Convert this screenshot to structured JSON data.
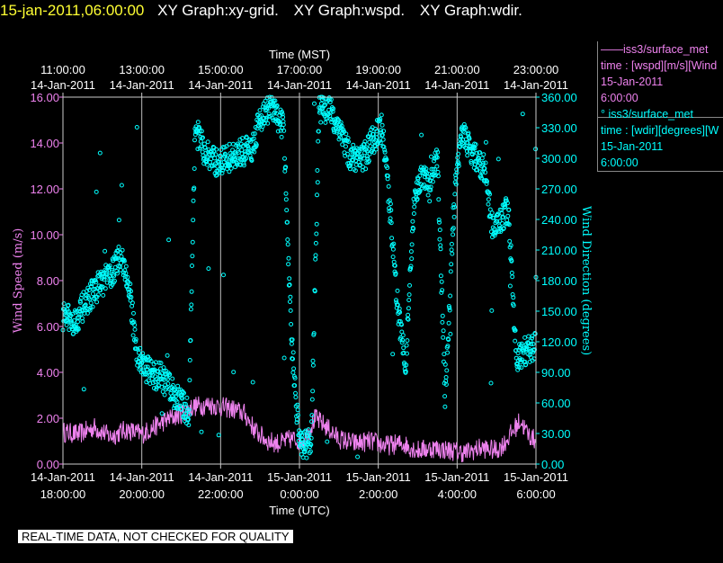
{
  "header": {
    "timestamp": "15-jan-2011,06:00:00",
    "titles": [
      "XY Graph:xy-grid.",
      "XY Graph:wspd.",
      "XY Graph:wdir."
    ]
  },
  "legend": [
    {
      "line1": "——iss3/surface_met",
      "line2": "time : [wspd][m/s][Wind",
      "line3": "15-Jan-2011",
      "line4": "6:00:00",
      "color": "#ee82ee"
    },
    {
      "line1": "° iss3/surface_met",
      "line2": "time : [wdir][degrees][W",
      "line3": "15-Jan-2011",
      "line4": "6:00:00",
      "color": "#00ffff"
    }
  ],
  "footer": "REAL-TIME DATA, NOT CHECKED FOR QUALITY",
  "chart_data": {
    "type": "line",
    "top_axis": {
      "label": "Time (MST)",
      "ticks": [
        {
          "time": "11:00:00",
          "date": "14-Jan-2011"
        },
        {
          "time": "13:00:00",
          "date": "14-Jan-2011"
        },
        {
          "time": "15:00:00",
          "date": "14-Jan-2011"
        },
        {
          "time": "17:00:00",
          "date": "14-Jan-2011"
        },
        {
          "time": "19:00:00",
          "date": "14-Jan-2011"
        },
        {
          "time": "21:00:00",
          "date": "14-Jan-2011"
        },
        {
          "time": "23:00:00",
          "date": "14-Jan-2011"
        }
      ]
    },
    "bottom_axis": {
      "label": "Time (UTC)",
      "ticks": [
        {
          "date": "14-Jan-2011",
          "time": "18:00:00"
        },
        {
          "date": "14-Jan-2011",
          "time": "20:00:00"
        },
        {
          "date": "14-Jan-2011",
          "time": "22:00:00"
        },
        {
          "date": "15-Jan-2011",
          "time": "0:00:00"
        },
        {
          "date": "15-Jan-2011",
          "time": "2:00:00"
        },
        {
          "date": "15-Jan-2011",
          "time": "4:00:00"
        },
        {
          "date": "15-Jan-2011",
          "time": "6:00:00"
        }
      ]
    },
    "xlim_hours_utc": [
      18,
      30
    ],
    "left_axis": {
      "label": "Wind Speed (m/s)",
      "color": "#ee82ee",
      "ylim": [
        0,
        16
      ],
      "ticks": [
        "0.00",
        "2.00",
        "4.00",
        "6.00",
        "8.00",
        "10.00",
        "12.00",
        "14.00",
        "16.00"
      ]
    },
    "right_axis": {
      "label": "Wind Direction (degrees)",
      "color": "#00ffff",
      "ylim": [
        0,
        360
      ],
      "ticks": [
        "0.00",
        "30.00",
        "60.00",
        "90.00",
        "120.00",
        "150.00",
        "180.00",
        "210.00",
        "240.00",
        "270.00",
        "300.00",
        "330.00",
        "360.00"
      ]
    },
    "grid": true,
    "series": [
      {
        "name": "iss3/surface_met time : [wspd][m/s]",
        "type": "line",
        "axis": "left",
        "color": "#ee82ee",
        "points": [
          [
            18.0,
            1.4
          ],
          [
            18.4,
            1.3
          ],
          [
            18.8,
            1.6
          ],
          [
            19.2,
            1.2
          ],
          [
            19.6,
            1.5
          ],
          [
            20.0,
            1.3
          ],
          [
            20.3,
            1.6
          ],
          [
            20.6,
            1.9
          ],
          [
            21.0,
            2.2
          ],
          [
            21.3,
            2.5
          ],
          [
            21.7,
            2.6
          ],
          [
            22.0,
            2.5
          ],
          [
            22.3,
            2.4
          ],
          [
            22.6,
            2.2
          ],
          [
            22.9,
            1.4
          ],
          [
            23.2,
            1.0
          ],
          [
            23.5,
            0.9
          ],
          [
            23.8,
            1.1
          ],
          [
            24.1,
            1.0
          ],
          [
            24.4,
            2.0
          ],
          [
            24.7,
            1.6
          ],
          [
            25.0,
            1.1
          ],
          [
            25.4,
            0.9
          ],
          [
            25.8,
            1.0
          ],
          [
            26.2,
            0.8
          ],
          [
            26.6,
            0.9
          ],
          [
            27.0,
            0.6
          ],
          [
            27.4,
            0.7
          ],
          [
            27.8,
            0.6
          ],
          [
            28.2,
            0.5
          ],
          [
            28.6,
            0.7
          ],
          [
            29.0,
            0.6
          ],
          [
            29.2,
            0.9
          ],
          [
            29.4,
            1.4
          ],
          [
            29.6,
            1.9
          ],
          [
            29.8,
            1.3
          ],
          [
            30.0,
            1.0
          ]
        ],
        "noise": 0.45
      },
      {
        "name": "iss3/surface_met time : [wdir][degrees]",
        "type": "scatter",
        "axis": "right",
        "color": "#00ffff",
        "points": [
          [
            18.0,
            145
          ],
          [
            18.3,
            140
          ],
          [
            18.6,
            160
          ],
          [
            18.9,
            175
          ],
          [
            19.2,
            185
          ],
          [
            19.5,
            205
          ],
          [
            19.7,
            165
          ],
          [
            19.9,
            105
          ],
          [
            20.2,
            90
          ],
          [
            20.5,
            85
          ],
          [
            20.8,
            70
          ],
          [
            21.0,
            60
          ],
          [
            21.2,
            50
          ],
          [
            21.35,
            330
          ],
          [
            21.6,
            305
          ],
          [
            21.9,
            295
          ],
          [
            22.2,
            300
          ],
          [
            22.5,
            305
          ],
          [
            22.8,
            310
          ],
          [
            23.0,
            340
          ],
          [
            23.3,
            350
          ],
          [
            23.6,
            330
          ],
          [
            23.8,
            120
          ],
          [
            24.0,
            20
          ],
          [
            24.3,
            20
          ],
          [
            24.5,
            350
          ],
          [
            24.8,
            345
          ],
          [
            25.0,
            330
          ],
          [
            25.3,
            300
          ],
          [
            25.6,
            300
          ],
          [
            25.9,
            320
          ],
          [
            26.1,
            330
          ],
          [
            26.3,
            250
          ],
          [
            26.5,
            150
          ],
          [
            26.7,
            100
          ],
          [
            26.9,
            250
          ],
          [
            27.1,
            285
          ],
          [
            27.3,
            270
          ],
          [
            27.5,
            300
          ],
          [
            27.7,
            60
          ],
          [
            27.9,
            240
          ],
          [
            28.1,
            330
          ],
          [
            28.3,
            310
          ],
          [
            28.5,
            300
          ],
          [
            28.7,
            290
          ],
          [
            28.9,
            230
          ],
          [
            29.1,
            240
          ],
          [
            29.3,
            250
          ],
          [
            29.5,
            100
          ],
          [
            29.7,
            110
          ],
          [
            30.0,
            115
          ]
        ],
        "noise": 14
      }
    ]
  }
}
